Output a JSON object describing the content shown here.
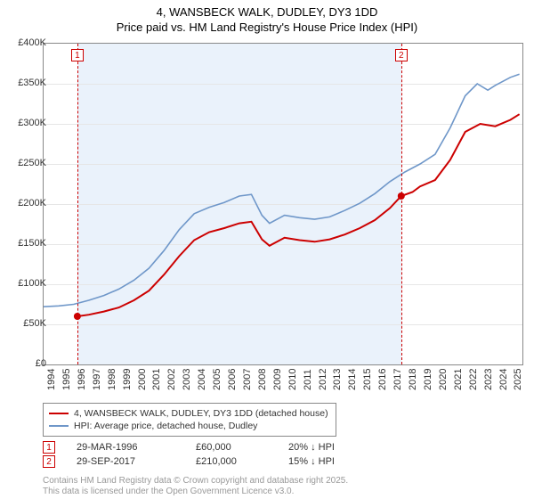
{
  "title": {
    "line1": "4, WANSBECK WALK, DUDLEY, DY3 1DD",
    "line2": "Price paid vs. HM Land Registry's House Price Index (HPI)",
    "fontsize": 13,
    "color": "#000000"
  },
  "chart": {
    "type": "line",
    "background_color": "#ffffff",
    "plot_band_color": "#eaf2fb",
    "plot_band_range": [
      1996.24,
      2017.75
    ],
    "grid_color": "#e6e6e6",
    "border_color": "#888888",
    "x": {
      "min": 1994,
      "max": 2025.8,
      "ticks": [
        1994,
        1995,
        1996,
        1997,
        1998,
        1999,
        2000,
        2001,
        2002,
        2003,
        2004,
        2005,
        2006,
        2007,
        2008,
        2009,
        2010,
        2011,
        2012,
        2013,
        2014,
        2015,
        2016,
        2017,
        2018,
        2019,
        2020,
        2021,
        2022,
        2023,
        2024,
        2025
      ],
      "tick_fontsize": 11
    },
    "y": {
      "min": 0,
      "max": 400000,
      "ticks": [
        0,
        50000,
        100000,
        150000,
        200000,
        250000,
        300000,
        350000,
        400000
      ],
      "tick_labels": [
        "£0",
        "£50K",
        "£100K",
        "£150K",
        "£200K",
        "£250K",
        "£300K",
        "£350K",
        "£400K"
      ],
      "tick_fontsize": 11
    },
    "series": [
      {
        "name": "property",
        "label": "4, WANSBECK WALK, DUDLEY, DY3 1DD (detached house)",
        "color": "#cc0000",
        "line_width": 2,
        "points": [
          [
            1996.24,
            60000
          ],
          [
            1997,
            62000
          ],
          [
            1998,
            66000
          ],
          [
            1999,
            71000
          ],
          [
            2000,
            80000
          ],
          [
            2001,
            92000
          ],
          [
            2002,
            112000
          ],
          [
            2003,
            135000
          ],
          [
            2004,
            155000
          ],
          [
            2005,
            165000
          ],
          [
            2006,
            170000
          ],
          [
            2007,
            176000
          ],
          [
            2007.8,
            178000
          ],
          [
            2008.5,
            156000
          ],
          [
            2009,
            148000
          ],
          [
            2010,
            158000
          ],
          [
            2011,
            155000
          ],
          [
            2012,
            153000
          ],
          [
            2013,
            156000
          ],
          [
            2014,
            162000
          ],
          [
            2015,
            170000
          ],
          [
            2016,
            180000
          ],
          [
            2017,
            195000
          ],
          [
            2017.75,
            210000
          ],
          [
            2018.5,
            215000
          ],
          [
            2019,
            222000
          ],
          [
            2020,
            230000
          ],
          [
            2021,
            255000
          ],
          [
            2022,
            290000
          ],
          [
            2023,
            300000
          ],
          [
            2024,
            297000
          ],
          [
            2025,
            305000
          ],
          [
            2025.6,
            312000
          ]
        ]
      },
      {
        "name": "hpi",
        "label": "HPI: Average price, detached house, Dudley",
        "color": "#6f97c9",
        "line_width": 1.6,
        "points": [
          [
            1994,
            72000
          ],
          [
            1995,
            73000
          ],
          [
            1996,
            75000
          ],
          [
            1997,
            80000
          ],
          [
            1998,
            86000
          ],
          [
            1999,
            94000
          ],
          [
            2000,
            105000
          ],
          [
            2001,
            120000
          ],
          [
            2002,
            142000
          ],
          [
            2003,
            168000
          ],
          [
            2004,
            188000
          ],
          [
            2005,
            196000
          ],
          [
            2006,
            202000
          ],
          [
            2007,
            210000
          ],
          [
            2007.8,
            212000
          ],
          [
            2008.5,
            186000
          ],
          [
            2009,
            176000
          ],
          [
            2010,
            186000
          ],
          [
            2011,
            183000
          ],
          [
            2012,
            181000
          ],
          [
            2013,
            184000
          ],
          [
            2014,
            192000
          ],
          [
            2015,
            201000
          ],
          [
            2016,
            213000
          ],
          [
            2017,
            228000
          ],
          [
            2018,
            240000
          ],
          [
            2019,
            250000
          ],
          [
            2020,
            262000
          ],
          [
            2021,
            295000
          ],
          [
            2022,
            335000
          ],
          [
            2022.8,
            350000
          ],
          [
            2023.5,
            342000
          ],
          [
            2024,
            348000
          ],
          [
            2025,
            358000
          ],
          [
            2025.6,
            362000
          ]
        ]
      }
    ],
    "markers": [
      {
        "id": "1",
        "x": 1996.24,
        "y": 60000,
        "badge_color": "#cc0000",
        "dash_color": "#cc0000"
      },
      {
        "id": "2",
        "x": 2017.75,
        "y": 210000,
        "badge_color": "#cc0000",
        "dash_color": "#cc0000"
      }
    ]
  },
  "legend": {
    "items": [
      {
        "color": "#cc0000",
        "label": "4, WANSBECK WALK, DUDLEY, DY3 1DD (detached house)"
      },
      {
        "color": "#6f97c9",
        "label": "HPI: Average price, detached house, Dudley"
      }
    ],
    "border_color": "#888888",
    "fontsize": 10.5
  },
  "events": [
    {
      "badge": "1",
      "date": "29-MAR-1996",
      "price": "£60,000",
      "diff": "20% ↓ HPI"
    },
    {
      "badge": "2",
      "date": "29-SEP-2017",
      "price": "£210,000",
      "diff": "15% ↓ HPI"
    }
  ],
  "footer": {
    "line1": "Contains HM Land Registry data © Crown copyright and database right 2025.",
    "line2": "This data is licensed under the Open Government Licence v3.0.",
    "color": "#999999",
    "fontsize": 10
  }
}
